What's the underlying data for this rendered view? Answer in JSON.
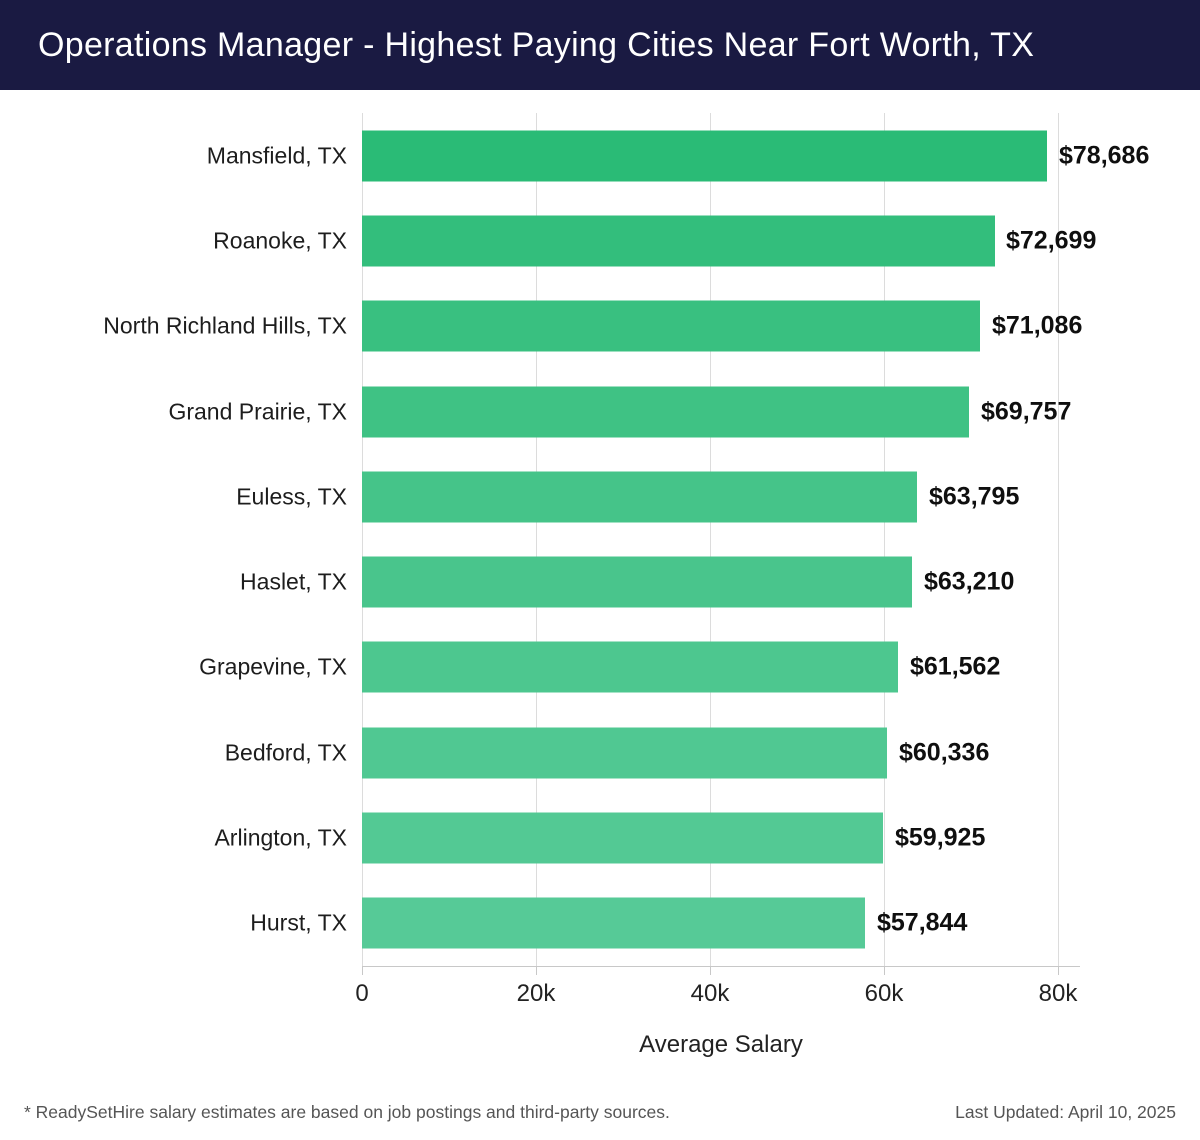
{
  "header": {
    "title": "Operations Manager - Highest Paying Cities Near Fort Worth, TX"
  },
  "chart_data": {
    "type": "bar",
    "orientation": "horizontal",
    "title": "Operations Manager - Highest Paying Cities Near Fort Worth, TX",
    "categories": [
      "Mansfield, TX",
      "Roanoke, TX",
      "North Richland Hills, TX",
      "Grand Prairie, TX",
      "Euless, TX",
      "Haslet, TX",
      "Grapevine, TX",
      "Bedford, TX",
      "Arlington, TX",
      "Hurst, TX"
    ],
    "values": [
      78686,
      72699,
      71086,
      69757,
      63795,
      63210,
      61562,
      60336,
      59925,
      57844
    ],
    "value_labels": [
      "$78,686",
      "$72,699",
      "$71,086",
      "$69,757",
      "$63,795",
      "$63,210",
      "$61,562",
      "$60,336",
      "$59,925",
      "$57,844"
    ],
    "bar_colors": [
      "#2abb76",
      "#33be7c",
      "#39c080",
      "#3fc284",
      "#45c489",
      "#49c58c",
      "#4dc78f",
      "#50c892",
      "#53c994",
      "#56ca97"
    ],
    "xlabel": "Average Salary",
    "ylabel": "",
    "x_ticks": [
      "0",
      "20k",
      "40k",
      "60k",
      "80k"
    ],
    "x_tick_values": [
      0,
      20000,
      40000,
      60000,
      80000
    ],
    "xlim": [
      0,
      80000
    ],
    "grid": true,
    "legend": false
  },
  "footer": {
    "disclaimer": "* ReadySetHire salary estimates are based on job postings and third-party sources.",
    "last_updated": "Last Updated: April 10, 2025"
  },
  "colors": {
    "header_bg": "#1a1a42",
    "grid": "#dcdcdc",
    "axis": "#c8c8c8",
    "title_text": "#ffffff",
    "label_text": "#1d1d1d",
    "value_text": "#0f0f0f",
    "footer_text": "#555555"
  }
}
